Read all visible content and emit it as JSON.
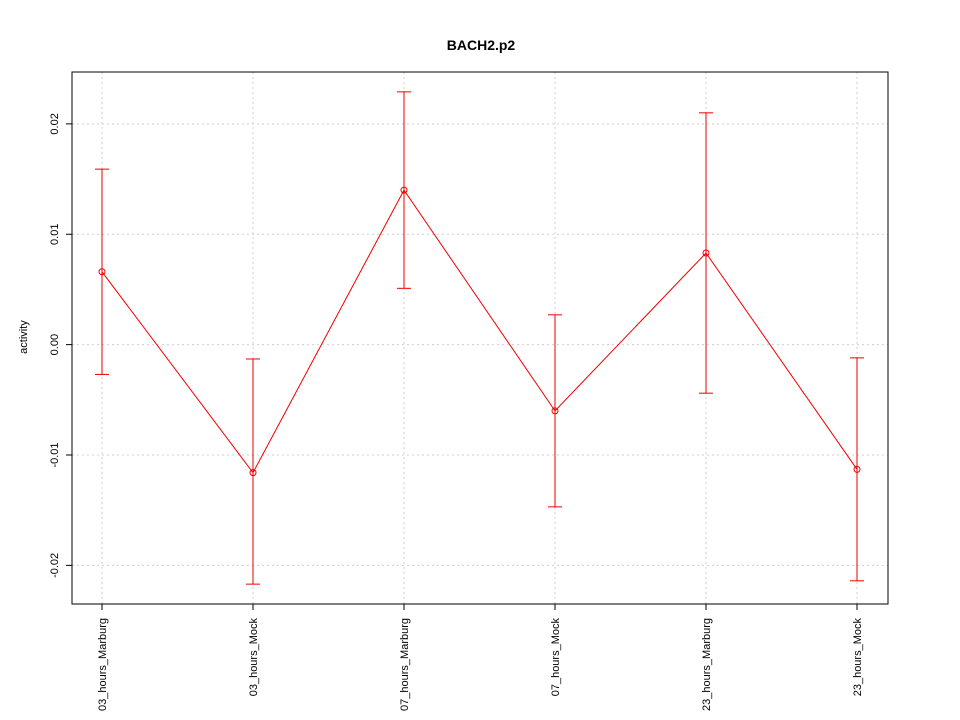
{
  "chart_data": {
    "type": "line",
    "title": "BACH2.p2",
    "xlabel": "",
    "ylabel": "activity",
    "categories": [
      "03_hours_Marburg",
      "03_hours_Mock",
      "07_hours_Marburg",
      "07_hours_Mock",
      "23_hours_Marburg",
      "23_hours_Mock"
    ],
    "series": [
      {
        "values": [
          0.0066,
          -0.0116,
          0.014,
          -0.006,
          0.0083,
          -0.0113
        ],
        "lower": [
          -0.0027,
          -0.0217,
          0.0051,
          -0.0147,
          -0.0044,
          -0.0214
        ],
        "upper": [
          0.0159,
          -0.0013,
          0.0229,
          0.0027,
          0.021,
          -0.0012
        ],
        "color": "#ee0000"
      }
    ],
    "yticks": [
      -0.02,
      -0.01,
      0.0,
      0.01,
      0.02
    ],
    "ytick_labels": [
      "-0.02",
      "-0.01",
      "0.00",
      "0.01",
      "0.02"
    ],
    "ylim": [
      -0.0235,
      0.0247
    ],
    "grid": true
  }
}
